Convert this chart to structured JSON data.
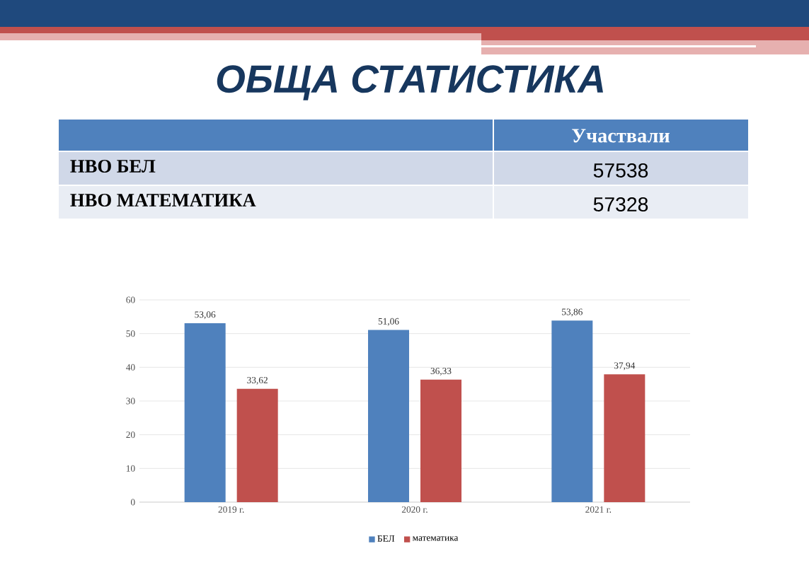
{
  "chart_data": [
    {
      "type": "other",
      "title": "ОБЩА СТАТИСТИКА",
      "categories": [
        "НВО БЕЛ",
        "НВО МАТЕМАТИКА"
      ],
      "series": [
        {
          "name": "Участвали",
          "values": [
            57538,
            57328
          ]
        }
      ],
      "data_labels": true
    },
    {
      "type": "bar",
      "categories": [
        "2019 г.",
        "2020 г.",
        "2021 г."
      ],
      "series": [
        {
          "name": "БЕЛ",
          "color": "#4f81bd",
          "values": [
            53.06,
            51.06,
            53.86
          ],
          "value_labels": [
            "53,06",
            "51,06",
            "53,86"
          ]
        },
        {
          "name": "математика",
          "color": "#c0504d",
          "values": [
            33.62,
            36.33,
            37.94
          ],
          "value_labels": [
            "33,62",
            "36,33",
            "37,94"
          ]
        }
      ],
      "ylim": [
        0,
        60
      ],
      "yticks": [
        0,
        10,
        20,
        30,
        40,
        50,
        60
      ],
      "grid": "y",
      "legend": "bottom"
    }
  ]
}
